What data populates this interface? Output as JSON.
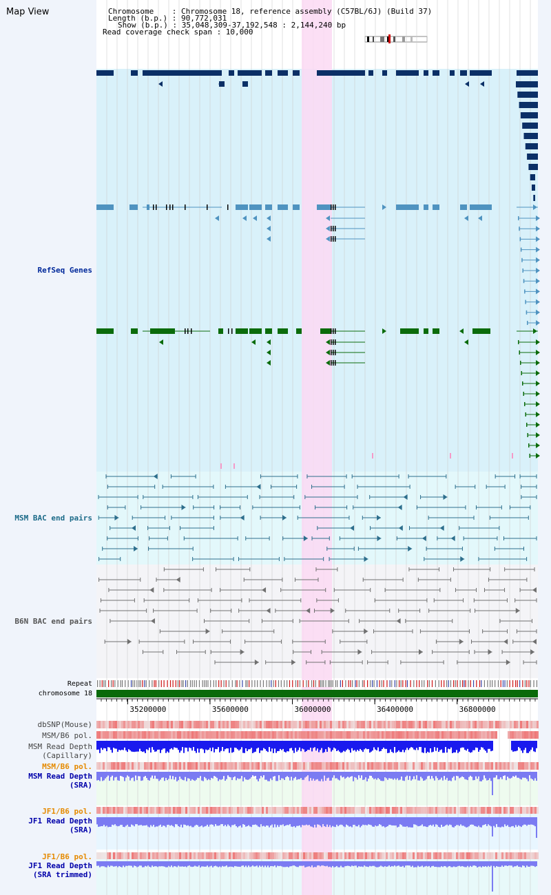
{
  "header": {
    "map_title": "Map View",
    "chromosome_line": "Chromosome    : Chromosome 18, reference assembly (C57BL/6J) (Build 37)",
    "length_line": "Length (b.p.) : 90,772,031",
    "show_line": "Show (b.p.) : 35,048,309-37,192,548 : 2,144,240 bp",
    "coverage_line": "Read coverage check span : 10,000"
  },
  "tracks": {
    "refseq_label": "RefSeq Genes",
    "msm_bac_label": "MSM BAC end pairs",
    "b6n_bac_label": "B6N BAC end pairs",
    "repeat_label": "Repeat",
    "chromosome_label": "chromosome 18",
    "dbsnp_label": "dbSNP(Mouse)",
    "msm_b6_pol_label": "MSM/B6 pol.",
    "msm_depth_cap_label_1": "MSM Read Depth",
    "msm_depth_cap_label_2": "(Capillary)",
    "msm_b6_pol2_label": "MSM/B6 pol.",
    "msm_depth_sra_label_1": "MSM Read Depth",
    "msm_depth_sra_label_2": "(SRA)",
    "jf1_pol_label": "JF1/B6 pol.",
    "jf1_depth_label_1": "JF1 Read Depth",
    "jf1_depth_label_2": "(SRA)",
    "jf1_pol2_label": "JF1/B6 pol.",
    "jf1_trim_label_1": "JF1 Read Depth",
    "jf1_trim_label_2": "(SRA trimmed)"
  },
  "axis": {
    "ticks": [
      {
        "pos": 35200000,
        "label": "35200000"
      },
      {
        "pos": 35600000,
        "label": "35600000"
      },
      {
        "pos": 36000000,
        "label": "36000000"
      },
      {
        "pos": 36400000,
        "label": "36400000"
      },
      {
        "pos": 36800000,
        "label": "36800000"
      }
    ]
  },
  "colors": {
    "refseq_bg": "#d9f1fa",
    "msm_bg": "#e3f8fb",
    "b6n_bg": "#f4f4f7",
    "highlight": "#fbd9f3",
    "gene_dark": "#0b2f66",
    "gene_mid": "#4f93c0",
    "gene_green": "#0b6b0b",
    "bac_msm": "#2d6e8c",
    "bac_b6n": "#707070",
    "chrom": "#0a6a0a",
    "depth_blue": "#1a1aee",
    "depth_light": "#7b7bf2",
    "pol_red": "#ee5050",
    "orange_label": "#e58a00",
    "blue_label": "#0000aa"
  }
}
